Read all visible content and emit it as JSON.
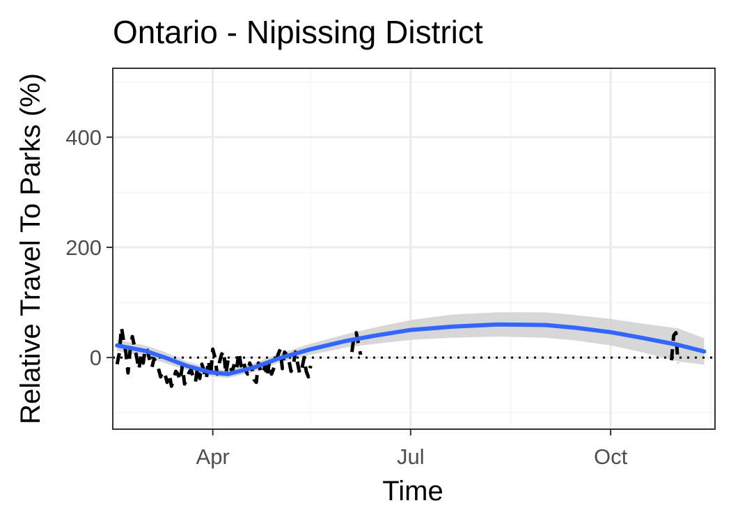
{
  "chart_data": {
    "type": "line",
    "title": "Ontario - Nipissing District",
    "xlabel": "Time",
    "ylabel": "Relative Travel To Parks (%)",
    "x_domain": [
      "2020-02-15",
      "2020-11-18"
    ],
    "ylim": [
      -130,
      525
    ],
    "x_ticks": [
      {
        "date": "2020-04-01",
        "label": "Apr"
      },
      {
        "date": "2020-07-01",
        "label": "Jul"
      },
      {
        "date": "2020-10-01",
        "label": "Oct"
      }
    ],
    "x_minor_ticks": [
      "2020-02-15",
      "2020-05-16",
      "2020-08-16",
      "2020-11-16"
    ],
    "y_ticks": [
      0,
      200,
      400
    ],
    "y_minor_ticks": [
      -100,
      100,
      300,
      500
    ],
    "grid": true,
    "reference_line": {
      "y": 0,
      "style": "dotted",
      "color": "#000000"
    },
    "series": [
      {
        "kind": "observed",
        "style": "dashed",
        "color": "#000000",
        "x": [
          "2020-02-17",
          "2020-02-18",
          "2020-02-19",
          "2020-02-20",
          "2020-02-21",
          "2020-02-22",
          "2020-02-23",
          "2020-02-24",
          "2020-02-25",
          "2020-02-26",
          "2020-02-27",
          "2020-02-28",
          "2020-02-29",
          "2020-03-01",
          "2020-03-02",
          "2020-03-03",
          "2020-03-04",
          "2020-03-05",
          "2020-03-06",
          "2020-03-07",
          "2020-03-08",
          "2020-03-09",
          "2020-03-10",
          "2020-03-11",
          "2020-03-12",
          "2020-03-13",
          "2020-03-14",
          "2020-03-15",
          "2020-03-16",
          "2020-03-17",
          "2020-03-18",
          "2020-03-19",
          "2020-03-20",
          "2020-03-21",
          "2020-03-22",
          "2020-03-23",
          "2020-03-24",
          "2020-03-25",
          "2020-03-26",
          "2020-03-27",
          "2020-03-28",
          "2020-03-29",
          "2020-03-30",
          "2020-03-31",
          "2020-04-01",
          "2020-04-02",
          "2020-04-03",
          "2020-04-04",
          "2020-04-05",
          "2020-04-06",
          "2020-04-07",
          "2020-04-08",
          "2020-04-09",
          "2020-04-10",
          "2020-04-11",
          "2020-04-12",
          "2020-04-13",
          "2020-04-14",
          "2020-04-15",
          "2020-04-16",
          "2020-04-17",
          "2020-04-18",
          "2020-04-19",
          "2020-04-20",
          "2020-04-21",
          "2020-04-22",
          "2020-04-23",
          "2020-04-24",
          "2020-04-25",
          "2020-04-26",
          "2020-04-27",
          "2020-04-28",
          "2020-04-29",
          "2020-04-30",
          "2020-05-01",
          "2020-05-02",
          "2020-05-03",
          "2020-05-04",
          "2020-05-05",
          "2020-05-06",
          "2020-05-07",
          "2020-05-08",
          "2020-05-09",
          "2020-05-10",
          "2020-05-11",
          "2020-05-12",
          "2020-05-13",
          "2020-05-14",
          "2020-05-15",
          "2020-05-16"
        ],
        "y": [
          -12,
          8,
          55,
          30,
          10,
          -28,
          15,
          38,
          20,
          0,
          -22,
          5,
          -10,
          18,
          12,
          -5,
          -18,
          -2,
          -10,
          -20,
          -35,
          -25,
          -30,
          -45,
          -30,
          -52,
          -38,
          -25,
          -30,
          -42,
          -15,
          -48,
          -40,
          -28,
          -22,
          -35,
          -45,
          -18,
          -38,
          -12,
          -25,
          -40,
          -5,
          -35,
          15,
          0,
          -30,
          -10,
          5,
          12,
          -30,
          -5,
          -18,
          -25,
          -10,
          -20,
          10,
          -15,
          -5,
          -22,
          -30,
          -10,
          -20,
          -40,
          -45,
          -10,
          -25,
          -30,
          -15,
          -35,
          -8,
          -30,
          -20,
          -10,
          5,
          15,
          -20,
          10,
          5,
          -5,
          -25,
          -15,
          10,
          -10,
          -30,
          -20,
          0,
          -25,
          -35,
          -15
        ]
      },
      {
        "kind": "observed",
        "style": "dashed",
        "color": "#000000",
        "x": [
          "2020-06-04",
          "2020-06-05",
          "2020-06-06",
          "2020-06-07",
          "2020-06-08"
        ],
        "y": [
          10,
          40,
          45,
          25,
          5
        ]
      },
      {
        "kind": "observed",
        "style": "dashed",
        "color": "#000000",
        "x": [
          "2020-10-29",
          "2020-10-30",
          "2020-10-31",
          "2020-11-01"
        ],
        "y": [
          -5,
          40,
          45,
          -10
        ]
      },
      {
        "kind": "smooth",
        "style": "solid",
        "color": "#3366ff",
        "x": [
          "2020-02-17",
          "2020-03-01",
          "2020-03-10",
          "2020-03-20",
          "2020-03-31",
          "2020-04-08",
          "2020-04-20",
          "2020-05-01",
          "2020-05-16",
          "2020-06-01",
          "2020-06-15",
          "2020-07-01",
          "2020-07-20",
          "2020-08-10",
          "2020-09-01",
          "2020-09-15",
          "2020-10-01",
          "2020-10-15",
          "2020-11-01",
          "2020-11-13"
        ],
        "y": [
          22,
          12,
          0,
          -15,
          -27,
          -30,
          -18,
          -2,
          15,
          30,
          40,
          50,
          56,
          60,
          59,
          54,
          46,
          36,
          23,
          11
        ],
        "ci_low": [
          12,
          2,
          -10,
          -23,
          -34,
          -37,
          -26,
          -10,
          5,
          18,
          25,
          32,
          36,
          38,
          36,
          31,
          22,
          10,
          -7,
          -13
        ],
        "ci_high": [
          32,
          22,
          10,
          -7,
          -20,
          -23,
          -10,
          6,
          25,
          42,
          55,
          68,
          78,
          82,
          82,
          77,
          70,
          62,
          53,
          35
        ]
      }
    ]
  },
  "colors": {
    "smooth_line": "#3366ff",
    "ci_band": "#d3d3d3",
    "observed": "#000000",
    "grid_major": "#ebebeb",
    "grid_minor": "#f5f5f5",
    "panel_border": "#333333",
    "tick_label": "#4d4d4d"
  }
}
